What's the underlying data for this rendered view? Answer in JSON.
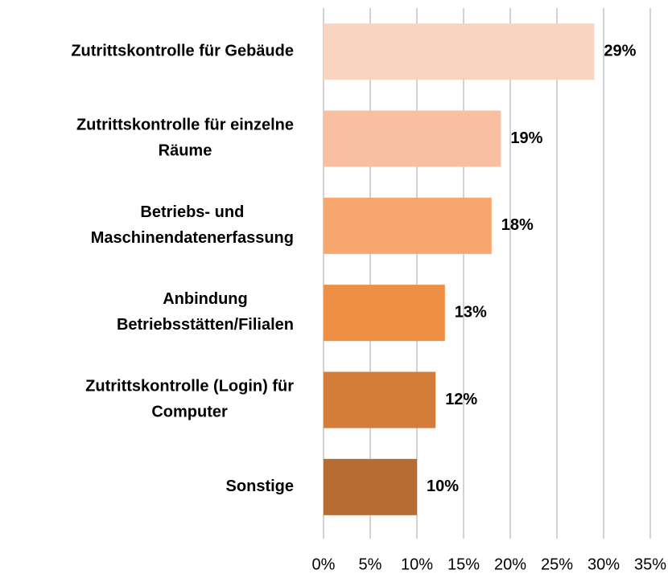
{
  "chart_data": {
    "type": "bar",
    "orientation": "horizontal",
    "categories": [
      "Zutrittskontrolle für Gebäude",
      "Zutrittskontrolle für einzelne\nRäume",
      "Betriebs- und\nMaschinendatenerfassung",
      "Anbindung\nBetriebsstätten/Filialen",
      "Zutrittskontrolle (Login) für\nComputer",
      "Sonstige"
    ],
    "values": [
      29,
      19,
      18,
      13,
      12,
      10
    ],
    "value_labels": [
      "29%",
      "19%",
      "18%",
      "13%",
      "12%",
      "10%"
    ],
    "colors": [
      "#f9d5c0",
      "#f8c0a0",
      "#f6a66e",
      "#ed8f44",
      "#d47c3a",
      "#b76c35"
    ],
    "xlim": [
      0,
      35
    ],
    "xticks": [
      {
        "value": 0,
        "label": "0%"
      },
      {
        "value": 5,
        "label": "5%"
      },
      {
        "value": 10,
        "label": "10%"
      },
      {
        "value": 15,
        "label": "15%"
      },
      {
        "value": 20,
        "label": "20%"
      },
      {
        "value": 25,
        "label": "25%"
      },
      {
        "value": 30,
        "label": "30%"
      },
      {
        "value": 35,
        "label": "35%"
      }
    ],
    "grid": true
  }
}
